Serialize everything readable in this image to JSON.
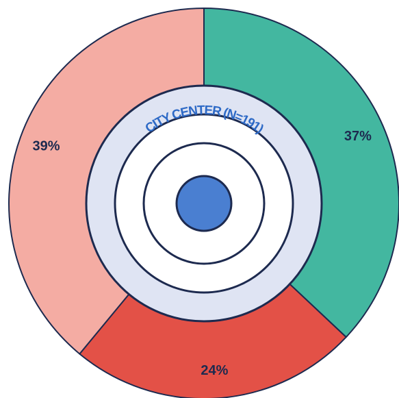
{
  "chart_data": {
    "type": "pie",
    "title": "CITY CENTER (N=191)",
    "values": [
      37,
      24,
      39
    ],
    "value_labels": [
      "37%",
      "24%",
      "39%"
    ],
    "colors": [
      "#43b7a0",
      "#e35147",
      "#f4aca3"
    ]
  }
}
